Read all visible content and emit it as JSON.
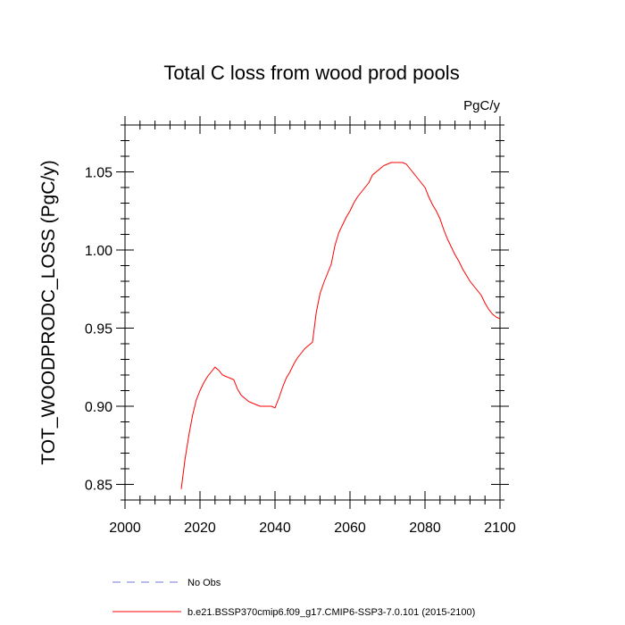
{
  "chart_data": {
    "type": "line",
    "title": "Total C loss from wood prod pools",
    "units_label": "PgC/y",
    "ylabel": "TOT_WOODPRODC_LOSS  (PgC/y)",
    "xlabel": "",
    "xlim": [
      2000,
      2100
    ],
    "ylim": [
      0.84,
      1.08
    ],
    "x_ticks": [
      2000,
      2020,
      2040,
      2060,
      2080,
      2100
    ],
    "x_tick_labels": [
      "2000",
      "2020",
      "2040",
      "2060",
      "2080",
      "2100"
    ],
    "y_ticks": [
      0.85,
      0.9,
      0.95,
      1.0,
      1.05
    ],
    "y_tick_labels": [
      "0.85",
      "0.90",
      "0.95",
      "1.00",
      "1.05"
    ],
    "grid": false,
    "legend_placement": "bottom",
    "legend": [
      {
        "label": "No Obs",
        "color": "#7777dd",
        "style": "dashed"
      },
      {
        "label": "b.e21.BSSP370cmip6.f09_g17.CMIP6-SSP3-7.0.101 (2015-2100)",
        "color": "#ff0000",
        "style": "solid"
      }
    ],
    "series": [
      {
        "name": "b.e21.BSSP370cmip6.f09_g17.CMIP6-SSP3-7.0.101 (2015-2100)",
        "color": "#ff0000",
        "x": [
          2015,
          2016,
          2017,
          2018,
          2019,
          2020,
          2021,
          2022,
          2023,
          2024,
          2025,
          2026,
          2027,
          2028,
          2029,
          2030,
          2031,
          2032,
          2033,
          2034,
          2035,
          2036,
          2037,
          2038,
          2039,
          2040,
          2041,
          2042,
          2043,
          2044,
          2045,
          2046,
          2047,
          2048,
          2049,
          2050,
          2051,
          2052,
          2053,
          2054,
          2055,
          2056,
          2057,
          2058,
          2059,
          2060,
          2061,
          2062,
          2063,
          2064,
          2065,
          2066,
          2067,
          2068,
          2069,
          2070,
          2071,
          2072,
          2073,
          2074,
          2075,
          2076,
          2077,
          2078,
          2079,
          2080,
          2081,
          2082,
          2083,
          2084,
          2085,
          2086,
          2087,
          2088,
          2089,
          2090,
          2091,
          2092,
          2093,
          2094,
          2095,
          2096,
          2097,
          2098,
          2099,
          2100
        ],
        "values": [
          0.847,
          0.866,
          0.881,
          0.894,
          0.904,
          0.91,
          0.915,
          0.919,
          0.922,
          0.925,
          0.923,
          0.92,
          0.919,
          0.918,
          0.917,
          0.911,
          0.907,
          0.905,
          0.903,
          0.902,
          0.901,
          0.9,
          0.9,
          0.9,
          0.9,
          0.899,
          0.905,
          0.912,
          0.918,
          0.922,
          0.927,
          0.931,
          0.934,
          0.937,
          0.939,
          0.941,
          0.96,
          0.972,
          0.979,
          0.985,
          0.991,
          1.003,
          1.011,
          1.016,
          1.021,
          1.025,
          1.03,
          1.034,
          1.037,
          1.04,
          1.043,
          1.048,
          1.05,
          1.052,
          1.054,
          1.055,
          1.056,
          1.056,
          1.056,
          1.056,
          1.055,
          1.052,
          1.049,
          1.046,
          1.043,
          1.04,
          1.034,
          1.029,
          1.025,
          1.02,
          1.013,
          1.007,
          1.002,
          0.997,
          0.993,
          0.988,
          0.984,
          0.98,
          0.977,
          0.974,
          0.971,
          0.966,
          0.962,
          0.959,
          0.957,
          0.956
        ]
      }
    ]
  }
}
